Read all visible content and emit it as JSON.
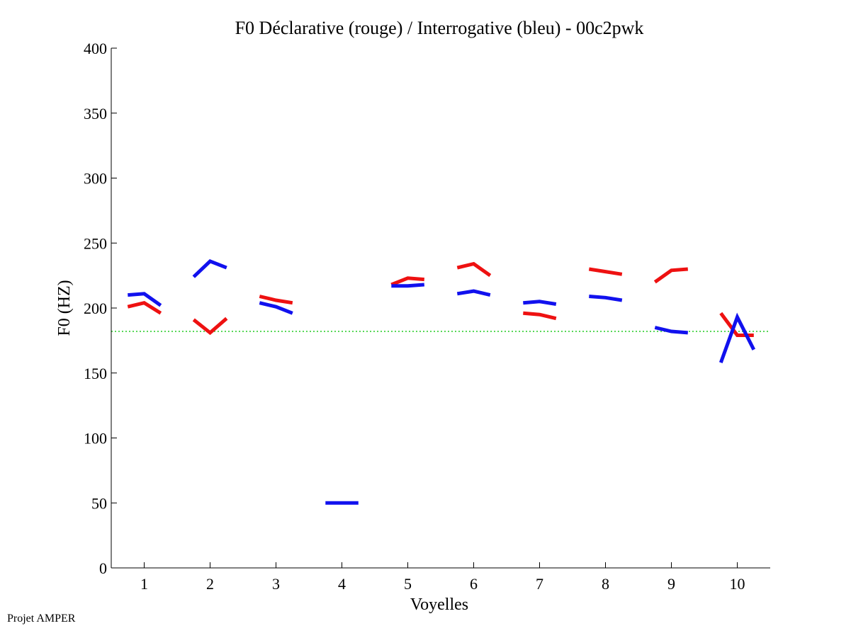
{
  "footer": "Projet AMPER",
  "colors": {
    "declarative": "#ee1111",
    "interrogative": "#1111ee",
    "reference": "#22cc22",
    "axis": "#000000"
  },
  "chart_data": {
    "type": "line",
    "title": "F0 Déclarative (rouge) / Interrogative (bleu) - 00c2pwk",
    "xlabel": "Voyelles",
    "ylabel": "F0 (HZ)",
    "xlim": [
      0.5,
      10.5
    ],
    "ylim": [
      0,
      400
    ],
    "xticks": [
      1,
      2,
      3,
      4,
      5,
      6,
      7,
      8,
      9,
      10
    ],
    "yticks": [
      0,
      50,
      100,
      150,
      200,
      250,
      300,
      350,
      400
    ],
    "reference_line": {
      "y": 182,
      "style": "dotted"
    },
    "series": [
      {
        "name": "Déclarative (rouge)",
        "color": "#ee1111",
        "segments": [
          {
            "x": [
              0.75,
              1.0,
              1.25
            ],
            "y": [
              201,
              204,
              196
            ]
          },
          {
            "x": [
              1.75,
              2.0,
              2.25
            ],
            "y": [
              191,
              181,
              192
            ]
          },
          {
            "x": [
              2.75,
              3.0,
              3.25
            ],
            "y": [
              209,
              206,
              204
            ]
          },
          {
            "x": [
              4.75,
              5.0,
              5.25
            ],
            "y": [
              218,
              223,
              222
            ]
          },
          {
            "x": [
              5.75,
              6.0,
              6.25
            ],
            "y": [
              231,
              234,
              225
            ]
          },
          {
            "x": [
              6.75,
              7.0,
              7.25
            ],
            "y": [
              196,
              195,
              192
            ]
          },
          {
            "x": [
              7.75,
              8.0,
              8.25
            ],
            "y": [
              230,
              228,
              226
            ]
          },
          {
            "x": [
              8.75,
              9.0,
              9.25
            ],
            "y": [
              220,
              229,
              230
            ]
          },
          {
            "x": [
              9.75,
              10.0,
              10.25
            ],
            "y": [
              196,
              179,
              179
            ]
          }
        ]
      },
      {
        "name": "Interrogative (bleu)",
        "color": "#1111ee",
        "segments": [
          {
            "x": [
              0.75,
              1.0,
              1.25
            ],
            "y": [
              210,
              211,
              202
            ]
          },
          {
            "x": [
              1.75,
              2.0,
              2.25
            ],
            "y": [
              224,
              236,
              231
            ]
          },
          {
            "x": [
              2.75,
              3.0,
              3.25
            ],
            "y": [
              204,
              201,
              196
            ]
          },
          {
            "x": [
              3.75,
              4.0,
              4.25
            ],
            "y": [
              50,
              50,
              50
            ]
          },
          {
            "x": [
              4.75,
              5.0,
              5.25
            ],
            "y": [
              217,
              217,
              218
            ]
          },
          {
            "x": [
              5.75,
              6.0,
              6.25
            ],
            "y": [
              211,
              213,
              210
            ]
          },
          {
            "x": [
              6.75,
              7.0,
              7.25
            ],
            "y": [
              204,
              205,
              203
            ]
          },
          {
            "x": [
              7.75,
              8.0,
              8.25
            ],
            "y": [
              209,
              208,
              206
            ]
          },
          {
            "x": [
              8.75,
              9.0,
              9.25
            ],
            "y": [
              185,
              182,
              181
            ]
          },
          {
            "x": [
              9.75,
              10.0,
              10.25
            ],
            "y": [
              158,
              193,
              168
            ]
          }
        ]
      }
    ]
  }
}
